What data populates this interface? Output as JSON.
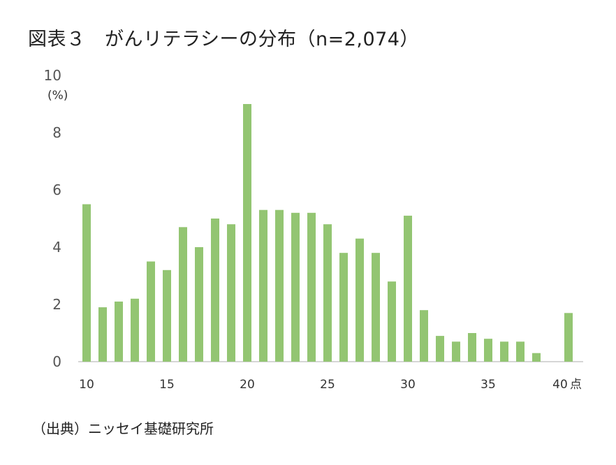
{
  "title": "図表３　がんリテラシーの分布（n=2,074）",
  "source": "（出典）ニッセイ基礎研究所",
  "chart_data": {
    "type": "bar",
    "ylabel": "(%)",
    "x_unit": "点",
    "ylim": [
      0,
      10
    ],
    "y_ticks": [
      0,
      2,
      4,
      6,
      8,
      10
    ],
    "x_tick_labels": [
      "10",
      "15",
      "20",
      "25",
      "30",
      "35",
      "40"
    ],
    "grid": false,
    "legend": "none",
    "bar_color": "#93c572",
    "categories": [
      10,
      11,
      12,
      13,
      14,
      15,
      16,
      17,
      18,
      19,
      20,
      21,
      22,
      23,
      24,
      25,
      26,
      27,
      28,
      29,
      30,
      31,
      32,
      33,
      34,
      35,
      36,
      37,
      38,
      39,
      40
    ],
    "values": [
      5.5,
      1.9,
      2.1,
      2.2,
      3.5,
      3.2,
      4.7,
      4.0,
      5.0,
      4.8,
      9.0,
      5.3,
      5.3,
      5.2,
      5.2,
      4.8,
      3.8,
      4.3,
      3.8,
      2.8,
      5.1,
      1.8,
      0.9,
      0.7,
      1.0,
      0.8,
      0.7,
      0.7,
      0.3,
      0,
      1.7
    ]
  }
}
